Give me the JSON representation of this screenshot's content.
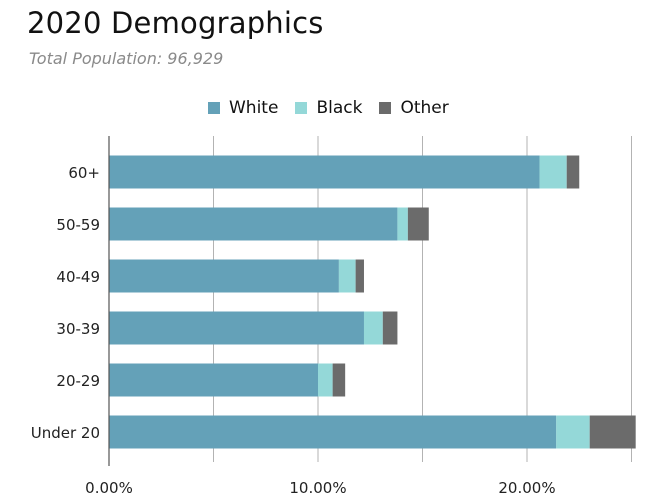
{
  "colors": {
    "White": "#64a1b8",
    "Black": "#94d8d8",
    "Other": "#6b6b6b",
    "grid": "#b3b3b3",
    "axis": "#555555"
  },
  "chart_data": {
    "type": "bar",
    "orientation": "horizontal",
    "stacked": true,
    "title": "2020 Demographics",
    "subtitle": "Total Population: 96,929",
    "categories": [
      "60+",
      "50-59",
      "40-49",
      "30-39",
      "20-29",
      "Under 20"
    ],
    "series": [
      {
        "name": "White",
        "values": [
          20.6,
          13.8,
          11.0,
          12.2,
          10.0,
          21.4
        ]
      },
      {
        "name": "Black",
        "values": [
          1.3,
          0.5,
          0.8,
          0.9,
          0.7,
          1.6
        ]
      },
      {
        "name": "Other",
        "values": [
          0.6,
          1.0,
          0.4,
          0.7,
          0.6,
          2.2
        ]
      }
    ],
    "xlim": [
      0,
      25
    ],
    "x_ticks": [
      0,
      10,
      20
    ],
    "x_tick_labels": [
      "0.00%",
      "10.00%",
      "20.00%"
    ],
    "x_gridlines": [
      5,
      10,
      15,
      20,
      25
    ],
    "legend_position": "top-center"
  }
}
